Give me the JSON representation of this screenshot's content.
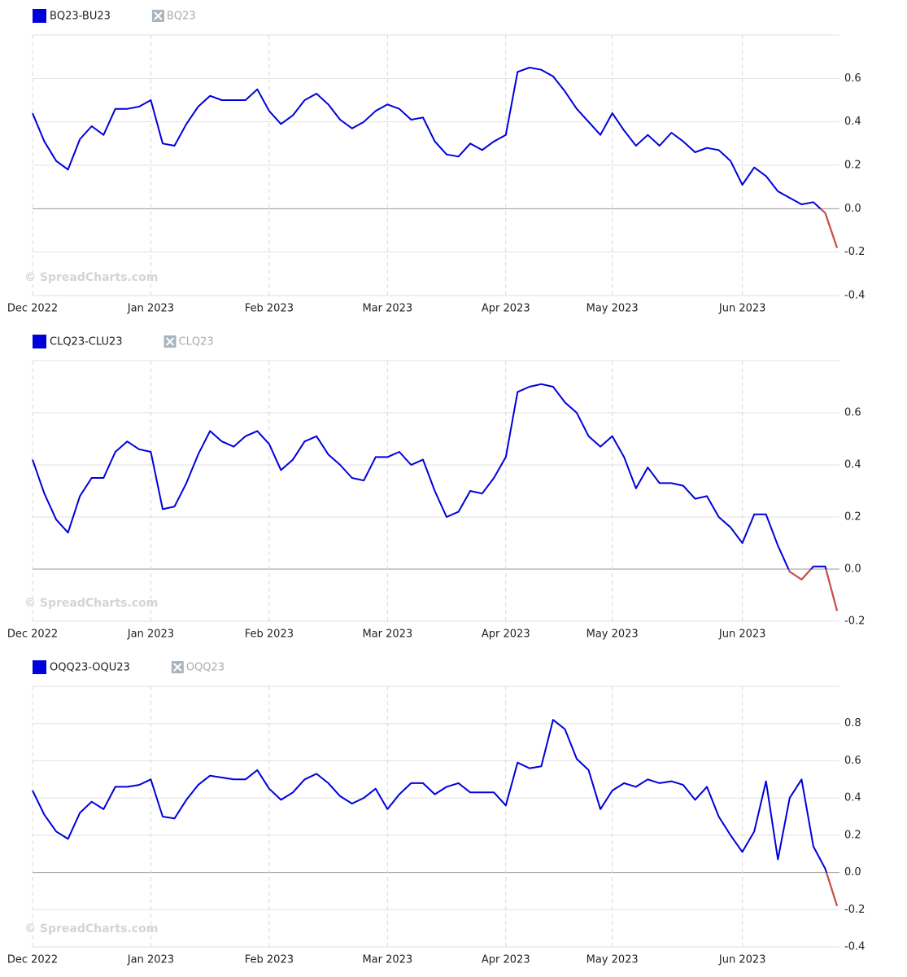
{
  "chart_data": [
    {
      "type": "line",
      "categories": [
        "Dec 2022",
        null,
        null,
        null,
        null,
        null,
        null,
        null,
        null,
        null,
        "Jan 2023",
        null,
        null,
        null,
        null,
        null,
        null,
        null,
        null,
        null,
        "Feb 2023",
        null,
        null,
        null,
        null,
        null,
        null,
        null,
        null,
        null,
        "Mar 2023",
        null,
        null,
        null,
        null,
        null,
        null,
        null,
        null,
        null,
        "Apr 2023",
        null,
        null,
        null,
        null,
        null,
        null,
        null,
        null,
        "May 2023",
        null,
        null,
        null,
        null,
        null,
        null,
        null,
        null,
        null,
        null,
        "Jun 2023",
        null,
        null,
        null,
        null,
        null,
        null,
        null,
        null
      ],
      "series": [
        {
          "name": "BQ23-BU23",
          "color": "#0000dd",
          "values": [
            0.44,
            0.31,
            0.22,
            0.18,
            0.32,
            0.38,
            0.34,
            0.46,
            0.46,
            0.47,
            0.5,
            0.3,
            0.29,
            0.39,
            0.47,
            0.52,
            0.5,
            0.5,
            0.5,
            0.55,
            0.45,
            0.39,
            0.43,
            0.5,
            0.53,
            0.48,
            0.41,
            0.37,
            0.4,
            0.45,
            0.48,
            0.46,
            0.41,
            0.42,
            0.31,
            0.25,
            0.24,
            0.3,
            0.27,
            0.31,
            0.34,
            0.63,
            0.65,
            0.64,
            0.61,
            0.54,
            0.46,
            0.4,
            0.34,
            0.44,
            0.36,
            0.29,
            0.34,
            0.29,
            0.35,
            0.31,
            0.26,
            0.28,
            0.27,
            0.22,
            0.11,
            0.19,
            0.15,
            0.08,
            0.05,
            0.02,
            0.03,
            -0.02,
            -0.18
          ]
        }
      ],
      "hidden_series": [
        "BQ23"
      ],
      "negative_color": "#d0503c",
      "watermark": "© SpreadCharts.com",
      "ylim": [
        -0.4,
        0.8
      ],
      "yticks": [
        -0.4,
        -0.2,
        {
          "value": 0,
          "label": "0.0"
        },
        0.2,
        0.4,
        0.6
      ],
      "grid": true
    },
    {
      "type": "line",
      "categories": [
        "Dec 2022",
        null,
        null,
        null,
        null,
        null,
        null,
        null,
        null,
        null,
        "Jan 2023",
        null,
        null,
        null,
        null,
        null,
        null,
        null,
        null,
        null,
        "Feb 2023",
        null,
        null,
        null,
        null,
        null,
        null,
        null,
        null,
        null,
        "Mar 2023",
        null,
        null,
        null,
        null,
        null,
        null,
        null,
        null,
        null,
        "Apr 2023",
        null,
        null,
        null,
        null,
        null,
        null,
        null,
        null,
        "May 2023",
        null,
        null,
        null,
        null,
        null,
        null,
        null,
        null,
        null,
        null,
        "Jun 2023",
        null,
        null,
        null,
        null,
        null,
        null,
        null,
        null
      ],
      "series": [
        {
          "name": "CLQ23-CLU23",
          "color": "#0000dd",
          "values": [
            0.42,
            0.29,
            0.19,
            0.14,
            0.28,
            0.35,
            0.35,
            0.45,
            0.49,
            0.46,
            0.45,
            0.23,
            0.24,
            0.33,
            0.44,
            0.53,
            0.49,
            0.47,
            0.51,
            0.53,
            0.48,
            0.38,
            0.42,
            0.49,
            0.51,
            0.44,
            0.4,
            0.35,
            0.34,
            0.43,
            0.43,
            0.45,
            0.4,
            0.42,
            0.3,
            0.2,
            0.22,
            0.3,
            0.29,
            0.35,
            0.43,
            0.68,
            0.7,
            0.71,
            0.7,
            0.64,
            0.6,
            0.51,
            0.47,
            0.51,
            0.43,
            0.31,
            0.39,
            0.33,
            0.33,
            0.32,
            0.27,
            0.28,
            0.2,
            0.16,
            0.1,
            0.21,
            0.21,
            0.09,
            -0.01,
            -0.04,
            0.01,
            0.01,
            -0.16
          ]
        }
      ],
      "hidden_series": [
        "CLQ23"
      ],
      "negative_color": "#d0503c",
      "watermark": "© SpreadCharts.com",
      "ylim": [
        -0.2,
        0.8
      ],
      "yticks": [
        -0.2,
        {
          "value": 0,
          "label": "0.0"
        },
        0.2,
        0.4,
        0.6
      ],
      "grid": true
    },
    {
      "type": "line",
      "categories": [
        "Dec 2022",
        null,
        null,
        null,
        null,
        null,
        null,
        null,
        null,
        null,
        "Jan 2023",
        null,
        null,
        null,
        null,
        null,
        null,
        null,
        null,
        null,
        "Feb 2023",
        null,
        null,
        null,
        null,
        null,
        null,
        null,
        null,
        null,
        "Mar 2023",
        null,
        null,
        null,
        null,
        null,
        null,
        null,
        null,
        null,
        "Apr 2023",
        null,
        null,
        null,
        null,
        null,
        null,
        null,
        null,
        "May 2023",
        null,
        null,
        null,
        null,
        null,
        null,
        null,
        null,
        null,
        null,
        "Jun 2023",
        null,
        null,
        null,
        null,
        null,
        null,
        null,
        null
      ],
      "series": [
        {
          "name": "OQQ23-OQU23",
          "color": "#0000dd",
          "values": [
            0.44,
            0.31,
            0.22,
            0.18,
            0.32,
            0.38,
            0.34,
            0.46,
            0.46,
            0.47,
            0.5,
            0.3,
            0.29,
            0.39,
            0.47,
            0.52,
            0.51,
            0.5,
            0.5,
            0.55,
            0.45,
            0.39,
            0.43,
            0.5,
            0.53,
            0.48,
            0.41,
            0.37,
            0.4,
            0.45,
            0.34,
            0.42,
            0.48,
            0.48,
            0.42,
            0.46,
            0.48,
            0.43,
            0.43,
            0.43,
            0.36,
            0.59,
            0.56,
            0.57,
            0.82,
            0.77,
            0.61,
            0.55,
            0.34,
            0.44,
            0.48,
            0.46,
            0.5,
            0.48,
            0.49,
            0.47,
            0.39,
            0.46,
            0.3,
            0.2,
            0.11,
            0.22,
            0.49,
            0.07,
            0.4,
            0.5,
            0.14,
            0.02,
            -0.18
          ]
        }
      ],
      "hidden_series": [
        "OQQ23"
      ],
      "negative_color": "#d0503c",
      "watermark": "© SpreadCharts.com",
      "ylim": [
        -0.4,
        1.0
      ],
      "yticks": [
        -0.4,
        -0.2,
        {
          "value": 0,
          "label": "0.0"
        },
        0.2,
        0.4,
        0.6,
        0.8
      ],
      "grid": true
    }
  ]
}
